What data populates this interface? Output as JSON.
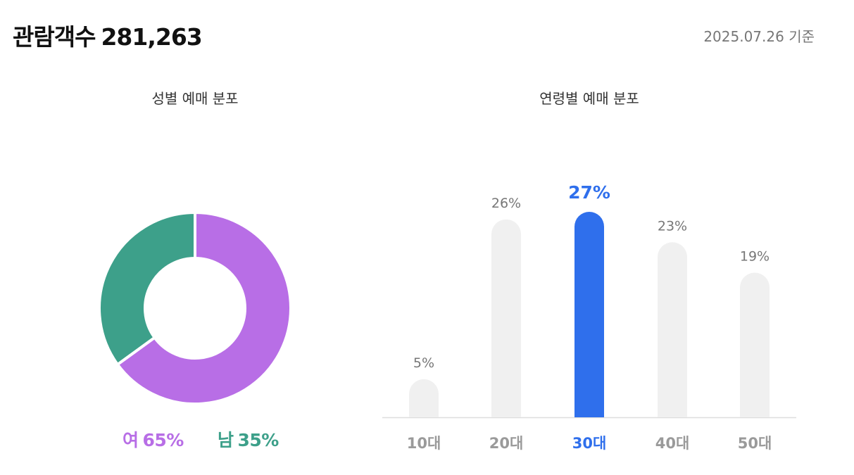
{
  "header": {
    "title_label": "관람객수",
    "total": "281,263",
    "date": "2025.07.26 기준"
  },
  "colors": {
    "female": "#b86ee6",
    "male": "#3da08a",
    "highlight": "#2f6fec",
    "bar_default": "#f0f0f0",
    "label_default": "#777777",
    "category_default": "#9a9a9a"
  },
  "chart_data": [
    {
      "type": "pie",
      "title": "성별 예매 분포",
      "donut": true,
      "slices": [
        {
          "name": "여",
          "value": 65,
          "label": "65%",
          "color": "#b86ee6"
        },
        {
          "name": "남",
          "value": 35,
          "label": "35%",
          "color": "#3da08a"
        }
      ]
    },
    {
      "type": "bar",
      "title": "연령별 예매 분포",
      "categories": [
        "10대",
        "20대",
        "30대",
        "40대",
        "50대"
      ],
      "values": [
        5,
        26,
        27,
        23,
        19
      ],
      "labels": [
        "5%",
        "26%",
        "27%",
        "23%",
        "19%"
      ],
      "highlight": "30대",
      "ylim": [
        0,
        27
      ],
      "grid": false
    }
  ]
}
